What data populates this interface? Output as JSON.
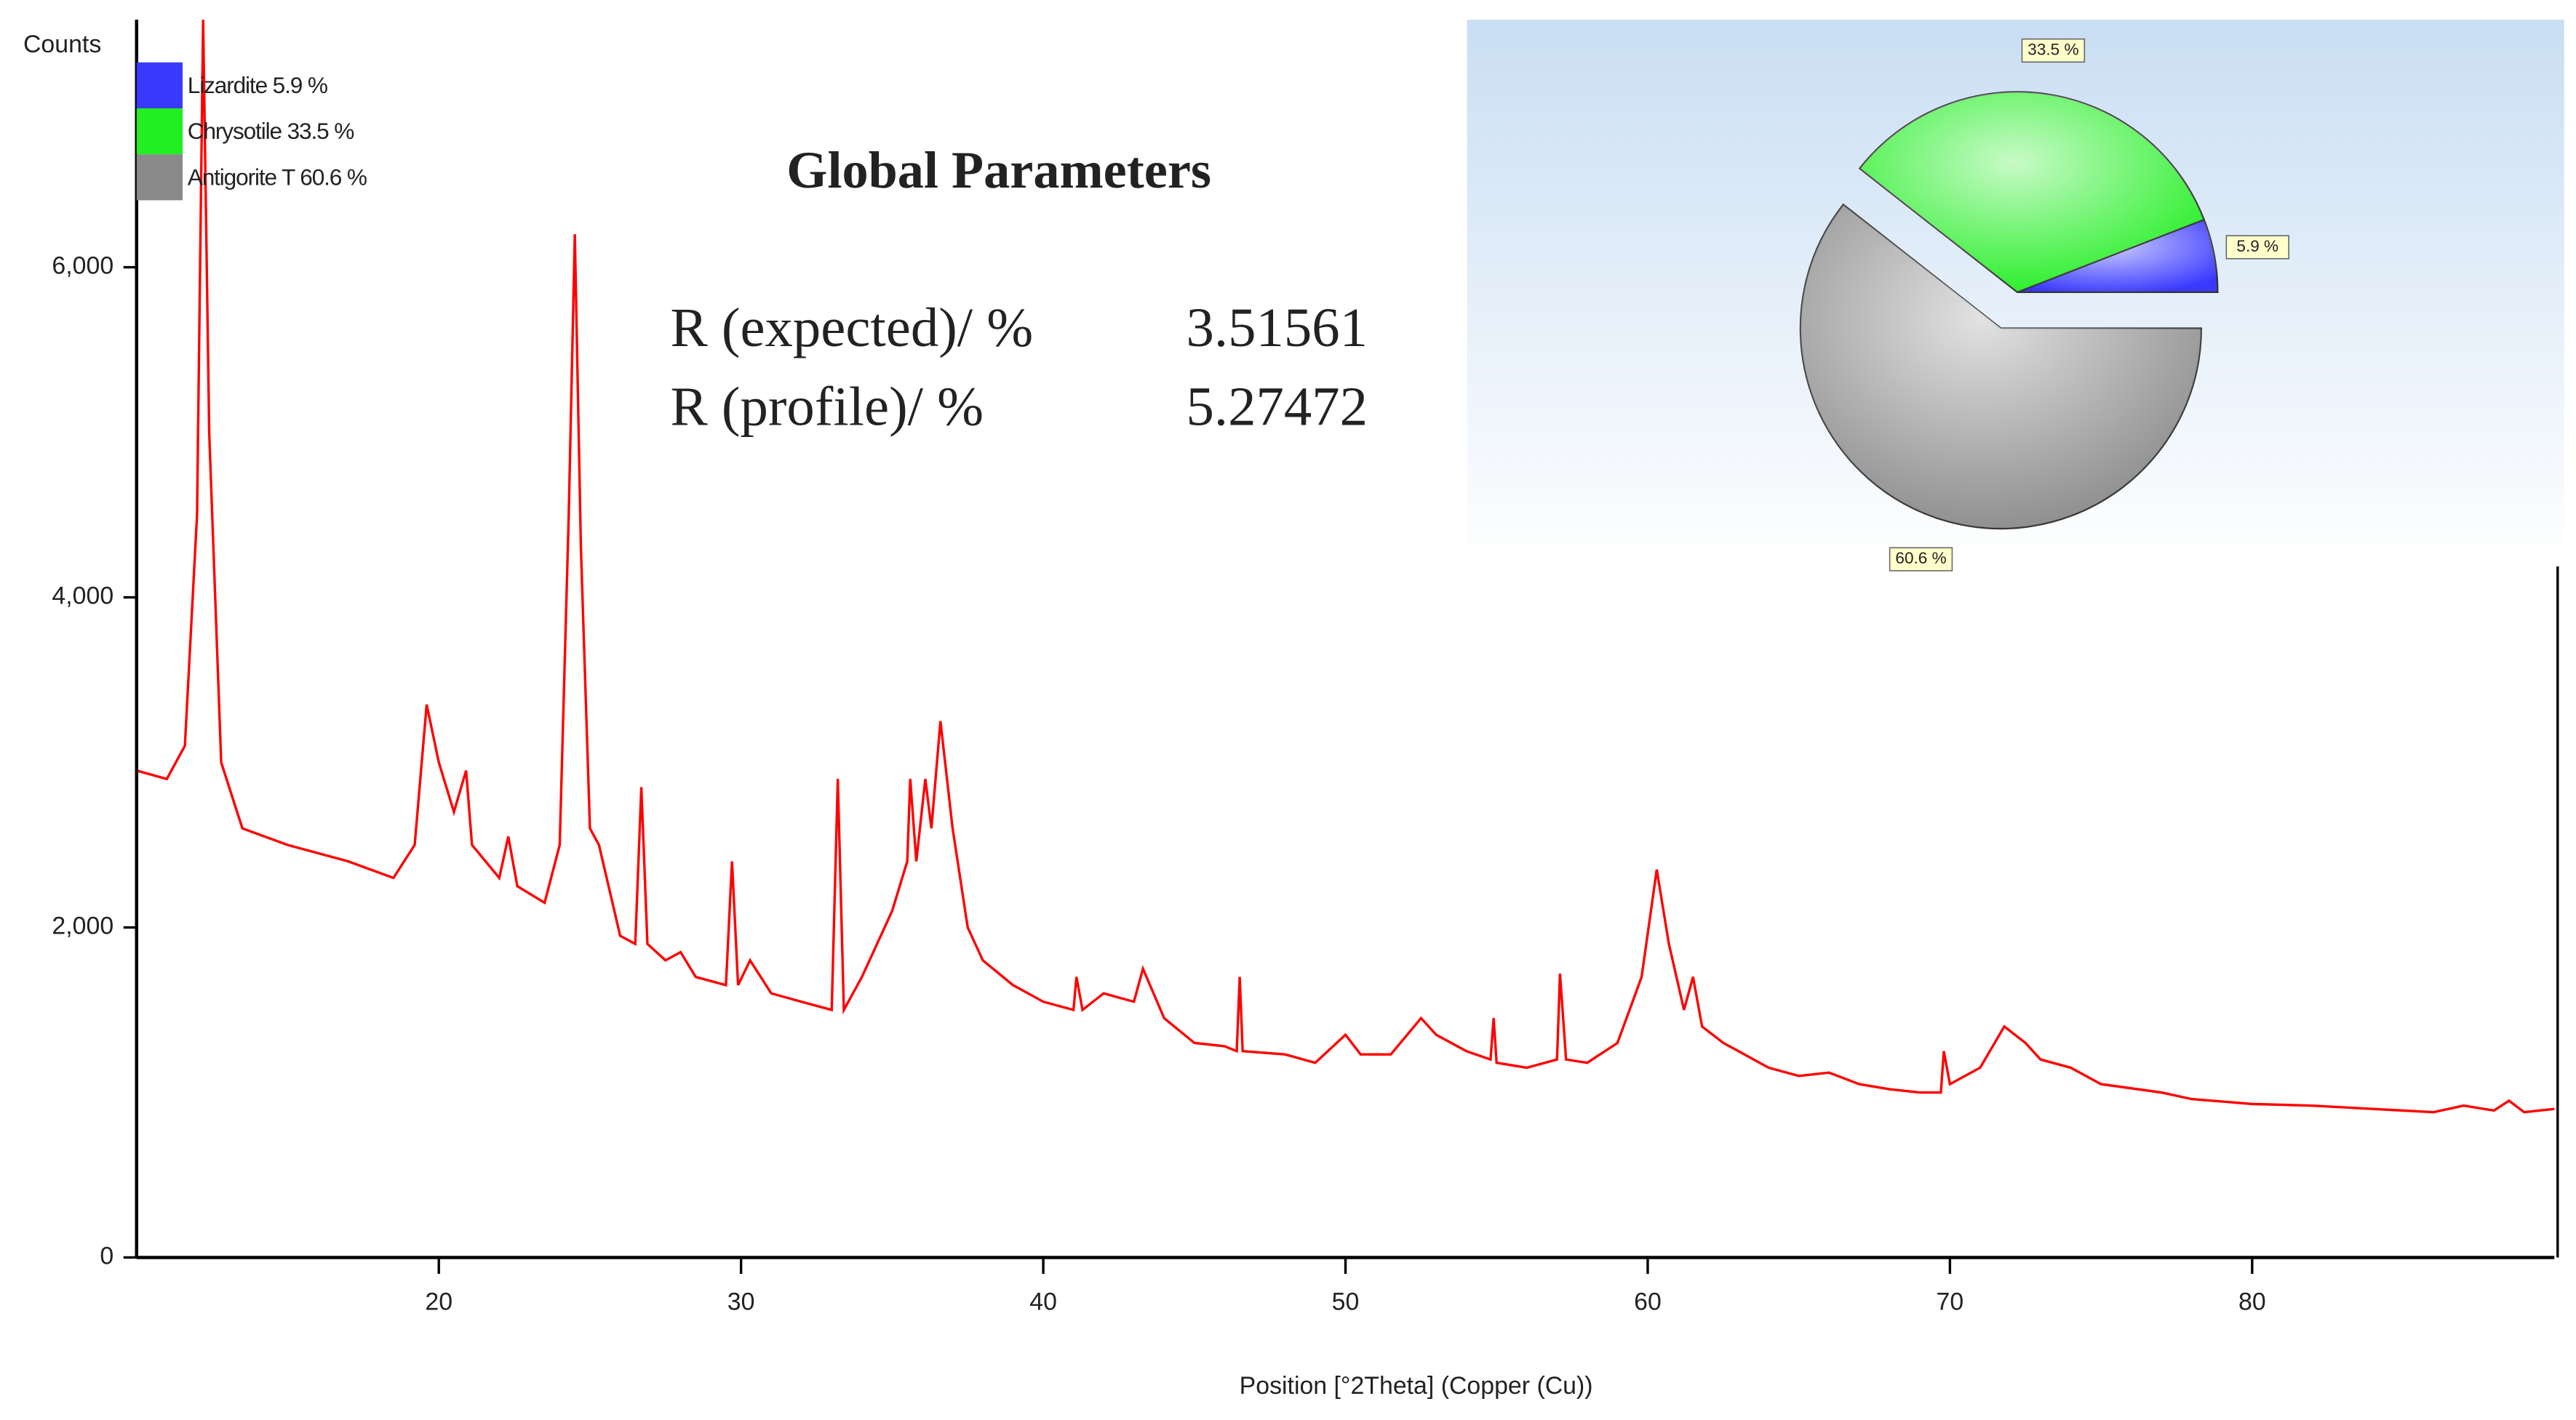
{
  "chart_data": [
    {
      "type": "line",
      "y_label": "Counts",
      "x_label": "Position [°2Theta] (Copper (Cu))",
      "annotation_title": "Global Parameters",
      "parameters": [
        {
          "label": "R (expected)/ %",
          "value": 3.51561
        },
        {
          "label": "R (profile)/ %",
          "value": 5.27472
        }
      ],
      "color": "#ff0000",
      "xlim": [
        10,
        90
      ],
      "xticks": [
        20,
        30,
        40,
        50,
        60,
        70,
        80
      ],
      "ylim": [
        0,
        7500
      ],
      "yticks": [
        0,
        {
          "value": 2000,
          "label": "2,000"
        },
        {
          "value": 4000,
          "label": "4,000"
        },
        {
          "value": 6000,
          "label": "6,000"
        }
      ],
      "x": [
        10,
        11,
        11.6,
        12.0,
        12.2,
        12.4,
        12.8,
        13.5,
        15,
        17,
        18.5,
        19.2,
        19.6,
        20,
        20.5,
        20.9,
        21.1,
        22,
        22.3,
        22.6,
        23.5,
        24.0,
        24.3,
        24.5,
        24.7,
        25,
        25.3,
        26,
        26.5,
        26.7,
        26.9,
        27.5,
        28,
        28.5,
        29.5,
        29.7,
        29.9,
        30.3,
        31,
        32,
        33,
        33.2,
        33.4,
        34,
        35,
        35.5,
        35.6,
        35.8,
        36.1,
        36.3,
        36.6,
        37,
        37.5,
        38,
        39,
        40,
        41,
        41.1,
        41.3,
        42,
        43,
        43.3,
        44,
        45,
        46,
        46.4,
        46.5,
        46.6,
        48,
        49,
        50,
        50.5,
        51.5,
        52.5,
        53,
        54,
        54.8,
        54.9,
        55,
        56,
        57,
        57.1,
        57.3,
        58,
        59,
        59.8,
        60.3,
        60.7,
        61.2,
        61.5,
        61.8,
        62.5,
        63,
        64,
        65,
        66,
        67,
        68,
        69,
        69.7,
        69.8,
        70,
        71,
        71.8,
        72.5,
        73,
        74,
        75,
        77,
        78,
        80,
        82,
        84,
        86,
        87,
        88,
        88.5,
        89,
        90
      ],
      "values": [
        2950,
        2900,
        3100,
        4500,
        7500,
        5000,
        3000,
        2600,
        2500,
        2400,
        2300,
        2500,
        3350,
        3000,
        2700,
        2950,
        2500,
        2300,
        2550,
        2250,
        2150,
        2500,
        4500,
        6200,
        4300,
        2600,
        2500,
        1950,
        1900,
        2850,
        1900,
        1800,
        1850,
        1700,
        1650,
        2400,
        1650,
        1800,
        1600,
        1550,
        1500,
        2900,
        1500,
        1700,
        2100,
        2400,
        2900,
        2400,
        2900,
        2600,
        3250,
        2600,
        2000,
        1800,
        1650,
        1550,
        1500,
        1700,
        1500,
        1600,
        1550,
        1750,
        1450,
        1300,
        1280,
        1250,
        1700,
        1250,
        1230,
        1180,
        1350,
        1230,
        1230,
        1450,
        1350,
        1250,
        1200,
        1450,
        1180,
        1150,
        1200,
        1720,
        1200,
        1180,
        1300,
        1700,
        2350,
        1900,
        1500,
        1700,
        1400,
        1300,
        1250,
        1150,
        1100,
        1120,
        1050,
        1020,
        1000,
        1000,
        1250,
        1050,
        1150,
        1400,
        1300,
        1200,
        1150,
        1050,
        1000,
        960,
        930,
        920,
        900,
        880,
        920,
        890,
        950,
        880,
        900
      ]
    },
    {
      "type": "pie",
      "categories": [
        "Lizardite 5.9 %",
        "Chrysotile 33.5 %",
        "Antigorite T 60.6 %"
      ],
      "values": [
        5.9,
        33.5,
        60.6
      ],
      "value_labels": [
        "5.9 %",
        "33.5 %",
        "60.6 %"
      ],
      "colors": [
        "#3a3aff",
        "#22ee22",
        "#8a8a8a"
      ]
    }
  ]
}
